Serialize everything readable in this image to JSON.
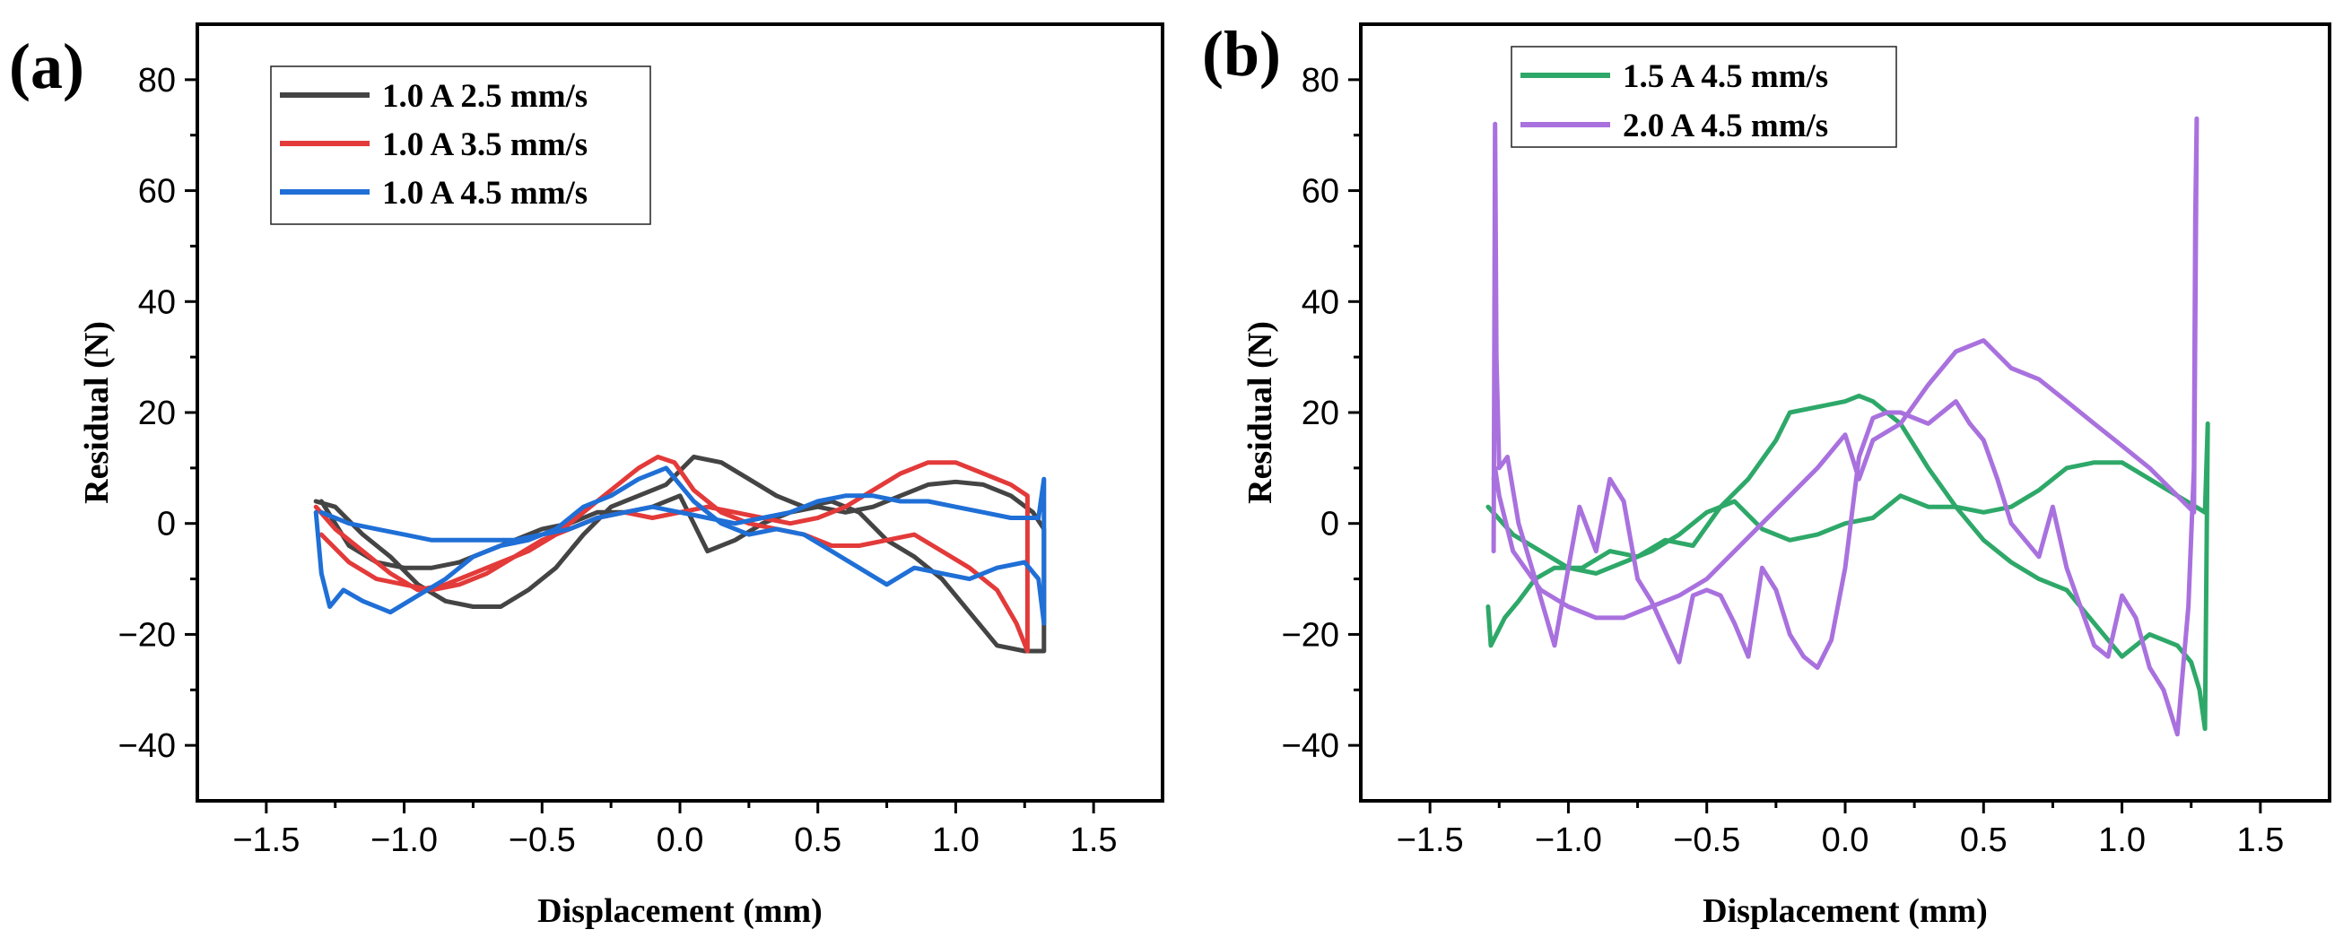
{
  "chart_data": [
    {
      "panel": "(a)",
      "type": "line",
      "xlabel": "Displacement (mm)",
      "ylabel": "Residual (N)",
      "xlim": [
        -1.75,
        1.75
      ],
      "ylim": [
        -50,
        90
      ],
      "xticks": [
        -1.5,
        -1.0,
        -0.5,
        0.0,
        0.5,
        1.0,
        1.5
      ],
      "xtick_labels": [
        "−1.5",
        "−1.0",
        "−0.5",
        "0.0",
        "0.5",
        "1.0",
        "1.5"
      ],
      "yticks": [
        -40,
        -20,
        0,
        20,
        40,
        60,
        80
      ],
      "ytick_labels": [
        "−40",
        "−20",
        "0",
        "20",
        "40",
        "60",
        "80"
      ],
      "legend_position": "top-left",
      "series": [
        {
          "name": "1.0 A  2.5 mm/s",
          "color": "#444444",
          "x": [
            -1.32,
            -1.25,
            -1.15,
            -1.05,
            -0.95,
            -0.85,
            -0.75,
            -0.65,
            -0.55,
            -0.45,
            -0.35,
            -0.25,
            -0.15,
            -0.05,
            0.05,
            0.15,
            0.25,
            0.35,
            0.45,
            0.55,
            0.65,
            0.75,
            0.85,
            0.95,
            1.05,
            1.15,
            1.25,
            1.32,
            1.32,
            1.28,
            1.2,
            1.1,
            1.0,
            0.9,
            0.8,
            0.7,
            0.6,
            0.5,
            0.4,
            0.3,
            0.2,
            0.1,
            0.05,
            0.0,
            -0.1,
            -0.2,
            -0.3,
            -0.4,
            -0.5,
            -0.6,
            -0.7,
            -0.8,
            -0.9,
            -1.0,
            -1.1,
            -1.2,
            -1.3
          ],
          "y": [
            4,
            3,
            -2,
            -6,
            -11,
            -14,
            -15,
            -15,
            -12,
            -8,
            -2,
            3,
            5,
            7,
            12,
            11,
            8,
            5,
            3,
            4,
            2,
            -3,
            -6,
            -10,
            -16,
            -22,
            -23,
            -23,
            -1,
            2,
            5,
            7,
            7.5,
            7,
            5,
            3,
            2,
            3,
            2,
            0,
            -3,
            -5,
            0,
            5,
            3,
            2,
            2,
            0,
            -1,
            -3,
            -5,
            -7,
            -8,
            -8,
            -7,
            -4,
            4
          ]
        },
        {
          "name": "1.0 A  3.5 mm/s",
          "color": "#e33a3a",
          "x": [
            -1.32,
            -1.25,
            -1.15,
            -1.05,
            -0.95,
            -0.85,
            -0.75,
            -0.65,
            -0.55,
            -0.45,
            -0.35,
            -0.25,
            -0.15,
            -0.08,
            -0.02,
            0.05,
            0.15,
            0.25,
            0.35,
            0.45,
            0.55,
            0.65,
            0.75,
            0.85,
            0.95,
            1.05,
            1.15,
            1.22,
            1.26,
            1.26,
            1.2,
            1.1,
            1.0,
            0.9,
            0.8,
            0.7,
            0.6,
            0.5,
            0.4,
            0.3,
            0.2,
            0.1,
            0.0,
            -0.1,
            -0.2,
            -0.3,
            -0.4,
            -0.5,
            -0.6,
            -0.7,
            -0.8,
            -0.9,
            -1.0,
            -1.1,
            -1.2,
            -1.3
          ],
          "y": [
            3,
            -1,
            -5,
            -9,
            -12,
            -11,
            -9,
            -7,
            -5,
            -2,
            2,
            6,
            10,
            12,
            11,
            6,
            2,
            0,
            -1,
            -2,
            -4,
            -4,
            -3,
            -2,
            -5,
            -8,
            -12,
            -18,
            -23,
            5,
            7,
            9,
            11,
            11,
            9,
            6,
            3,
            1,
            0,
            1,
            2,
            3,
            2,
            1,
            2,
            1,
            -1,
            -3,
            -6,
            -9,
            -11,
            -12,
            -11,
            -10,
            -7,
            -2
          ]
        },
        {
          "name": "1.0 A  4.5 mm/s",
          "color": "#1f6fd6",
          "x": [
            -1.32,
            -1.3,
            -1.27,
            -1.22,
            -1.15,
            -1.05,
            -0.95,
            -0.85,
            -0.75,
            -0.65,
            -0.55,
            -0.45,
            -0.35,
            -0.25,
            -0.15,
            -0.05,
            0.05,
            0.15,
            0.25,
            0.35,
            0.45,
            0.55,
            0.65,
            0.75,
            0.85,
            0.95,
            1.05,
            1.15,
            1.25,
            1.3,
            1.32,
            1.32,
            1.3,
            1.2,
            1.1,
            1.0,
            0.9,
            0.8,
            0.7,
            0.6,
            0.5,
            0.4,
            0.3,
            0.2,
            0.1,
            0.0,
            -0.1,
            -0.2,
            -0.3,
            -0.4,
            -0.5,
            -0.6,
            -0.7,
            -0.8,
            -0.9,
            -1.0,
            -1.1,
            -1.2,
            -1.3
          ],
          "y": [
            2,
            -9,
            -15,
            -12,
            -14,
            -16,
            -13,
            -10,
            -6,
            -4,
            -3,
            -1,
            3,
            5,
            8,
            10,
            4,
            0,
            -2,
            -1,
            -2,
            -5,
            -8,
            -11,
            -8,
            -9,
            -10,
            -8,
            -7,
            -10,
            -18,
            8,
            1,
            1,
            2,
            3,
            4,
            4,
            5,
            5,
            4,
            2,
            1,
            0,
            1,
            2,
            3,
            2,
            1,
            -1,
            -2,
            -3,
            -3,
            -3,
            -3,
            -2,
            -1,
            0,
            2
          ]
        }
      ]
    },
    {
      "panel": "(b)",
      "type": "line",
      "xlabel": "Displacement (mm)",
      "ylabel": "Residual (N)",
      "xlim": [
        -1.75,
        1.75
      ],
      "ylim": [
        -50,
        90
      ],
      "xticks": [
        -1.5,
        -1.0,
        -0.5,
        0.0,
        0.5,
        1.0,
        1.5
      ],
      "xtick_labels": [
        "−1.5",
        "−1.0",
        "−0.5",
        "0.0",
        "0.5",
        "1.0",
        "1.5"
      ],
      "yticks": [
        -40,
        -20,
        0,
        20,
        40,
        60,
        80
      ],
      "ytick_labels": [
        "−40",
        "−20",
        "0",
        "20",
        "40",
        "60",
        "80"
      ],
      "legend_position": "top-left",
      "series": [
        {
          "name": "1.5 A  4.5 mm/s",
          "color": "#2ea869",
          "x": [
            -1.29,
            -1.28,
            -1.26,
            -1.23,
            -1.18,
            -1.12,
            -1.05,
            -0.95,
            -0.85,
            -0.75,
            -0.65,
            -0.55,
            -0.45,
            -0.35,
            -0.25,
            -0.2,
            -0.1,
            0.0,
            0.05,
            0.1,
            0.2,
            0.3,
            0.4,
            0.5,
            0.6,
            0.7,
            0.8,
            0.9,
            1.0,
            1.1,
            1.2,
            1.25,
            1.28,
            1.3,
            1.31,
            1.3,
            1.2,
            1.1,
            1.0,
            0.9,
            0.8,
            0.7,
            0.6,
            0.5,
            0.4,
            0.3,
            0.2,
            0.1,
            0.0,
            -0.1,
            -0.2,
            -0.3,
            -0.4,
            -0.5,
            -0.6,
            -0.7,
            -0.8,
            -0.9,
            -1.0,
            -1.1,
            -1.2,
            -1.29
          ],
          "y": [
            -15,
            -22,
            -20,
            -17,
            -14,
            -10,
            -8,
            -8,
            -5,
            -6,
            -3,
            -4,
            3,
            8,
            15,
            20,
            21,
            22,
            23,
            22,
            18,
            10,
            3,
            -3,
            -7,
            -10,
            -12,
            -18,
            -24,
            -20,
            -22,
            -25,
            -30,
            -37,
            18,
            2,
            5,
            8,
            11,
            11,
            10,
            6,
            3,
            2,
            3,
            3,
            5,
            1,
            0,
            -2,
            -3,
            -1,
            4,
            2,
            -2,
            -5,
            -7,
            -9,
            -8,
            -5,
            -2,
            3
          ]
        },
        {
          "name": "2.0 A  4.5 mm/s",
          "color": "#a971de",
          "x": [
            -1.27,
            -1.265,
            -1.26,
            -1.25,
            -1.22,
            -1.18,
            -1.12,
            -1.05,
            -1.0,
            -0.96,
            -0.9,
            -0.85,
            -0.8,
            -0.75,
            -0.7,
            -0.6,
            -0.55,
            -0.5,
            -0.45,
            -0.4,
            -0.35,
            -0.3,
            -0.25,
            -0.2,
            -0.15,
            -0.1,
            -0.05,
            0.0,
            0.05,
            0.1,
            0.15,
            0.2,
            0.3,
            0.35,
            0.4,
            0.45,
            0.5,
            0.55,
            0.6,
            0.65,
            0.7,
            0.75,
            0.8,
            0.85,
            0.9,
            0.95,
            1.0,
            1.05,
            1.1,
            1.15,
            1.2,
            1.24,
            1.26,
            1.265,
            1.27,
            1.26,
            1.2,
            1.1,
            1.0,
            0.9,
            0.8,
            0.7,
            0.6,
            0.5,
            0.4,
            0.3,
            0.2,
            0.1,
            0.05,
            0.0,
            -0.1,
            -0.2,
            -0.3,
            -0.4,
            -0.5,
            -0.6,
            -0.7,
            -0.8,
            -0.9,
            -1.0,
            -1.1,
            -1.2,
            -1.25,
            -1.265,
            -1.27
          ],
          "y": [
            -5,
            72,
            30,
            10,
            12,
            0,
            -10,
            -22,
            -8,
            3,
            -5,
            8,
            4,
            -10,
            -14,
            -25,
            -13,
            -12,
            -13,
            -18,
            -24,
            -8,
            -12,
            -20,
            -24,
            -26,
            -21,
            -8,
            12,
            19,
            20,
            20,
            18,
            20,
            22,
            18,
            15,
            8,
            0,
            -3,
            -6,
            3,
            -8,
            -15,
            -22,
            -24,
            -13,
            -17,
            -26,
            -30,
            -38,
            -15,
            10,
            55,
            73,
            2,
            5,
            10,
            14,
            18,
            22,
            26,
            28,
            33,
            31,
            25,
            18,
            15,
            8,
            16,
            10,
            5,
            0,
            -5,
            -10,
            -13,
            -15,
            -17,
            -17,
            -15,
            -12,
            -5,
            5,
            10,
            8
          ]
        }
      ]
    }
  ]
}
